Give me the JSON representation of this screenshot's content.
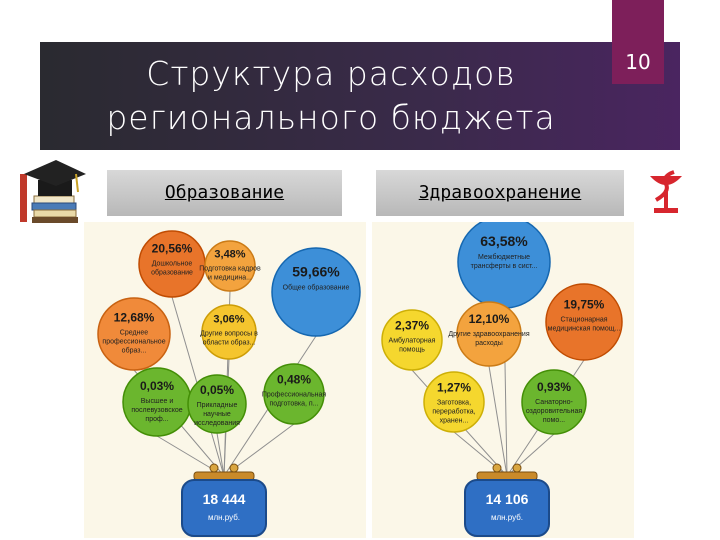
{
  "title": "Структура расходов регионального бюджета",
  "page_number": "10",
  "headers": {
    "education": "Образование",
    "health": "Здравоохранение"
  },
  "education": {
    "bubbles": [
      {
        "value": "20,56%",
        "label": [
          "Дошкольное",
          "образование"
        ],
        "color": "#e8742a"
      },
      {
        "value": "3,48%",
        "label": [
          "Подготовка кадров",
          "и медицина..."
        ],
        "color": "#f3a33e"
      },
      {
        "value": "59,66%",
        "label": [
          "Общее образование"
        ],
        "color": "#3d8fd8"
      },
      {
        "value": "12,68%",
        "label": [
          "Среднее",
          "профессиональное",
          "образ..."
        ],
        "color": "#f08a3a"
      },
      {
        "value": "3,06%",
        "label": [
          "Другие вопросы в",
          "области образ..."
        ],
        "color": "#f5c52e"
      },
      {
        "value": "0,03%",
        "label": [
          "Высшее и",
          "послевузовское",
          "проф..."
        ],
        "color": "#6bb62e"
      },
      {
        "value": "0,05%",
        "label": [
          "Прикладные",
          "научные",
          "исследования"
        ],
        "color": "#6bb62e"
      },
      {
        "value": "0,48%",
        "label": [
          "Профессиональная",
          "подготовка, п..."
        ],
        "color": "#6bb62e"
      }
    ],
    "total": {
      "value": "18 444",
      "unit": "млн.руб."
    }
  },
  "health": {
    "bubbles": [
      {
        "value": "63,58%",
        "label": [
          "Межбюджетные",
          "трансферты в сист..."
        ],
        "color": "#3d8fd8"
      },
      {
        "value": "19,75%",
        "label": [
          "Стационарная",
          "медицинская помощ..."
        ],
        "color": "#e8742a"
      },
      {
        "value": "2,37%",
        "label": [
          "Амбулаторная",
          "помощь"
        ],
        "color": "#f5d72e"
      },
      {
        "value": "12,10%",
        "label": [
          "Другие здравоохранения",
          "расходы"
        ],
        "color": "#f3a33e"
      },
      {
        "value": "1,27%",
        "label": [
          "Заготовка,",
          "переработка,",
          "хранен..."
        ],
        "color": "#f5d72e"
      },
      {
        "value": "0,93%",
        "label": [
          "Санаторно-",
          "оздоровительная",
          "помо..."
        ],
        "color": "#6bb62e"
      }
    ],
    "total": {
      "value": "14 106",
      "unit": "млн.руб."
    }
  },
  "icons": {
    "left": "graduation-cap-books-icon",
    "right": "medical-bowl-snake-icon"
  }
}
